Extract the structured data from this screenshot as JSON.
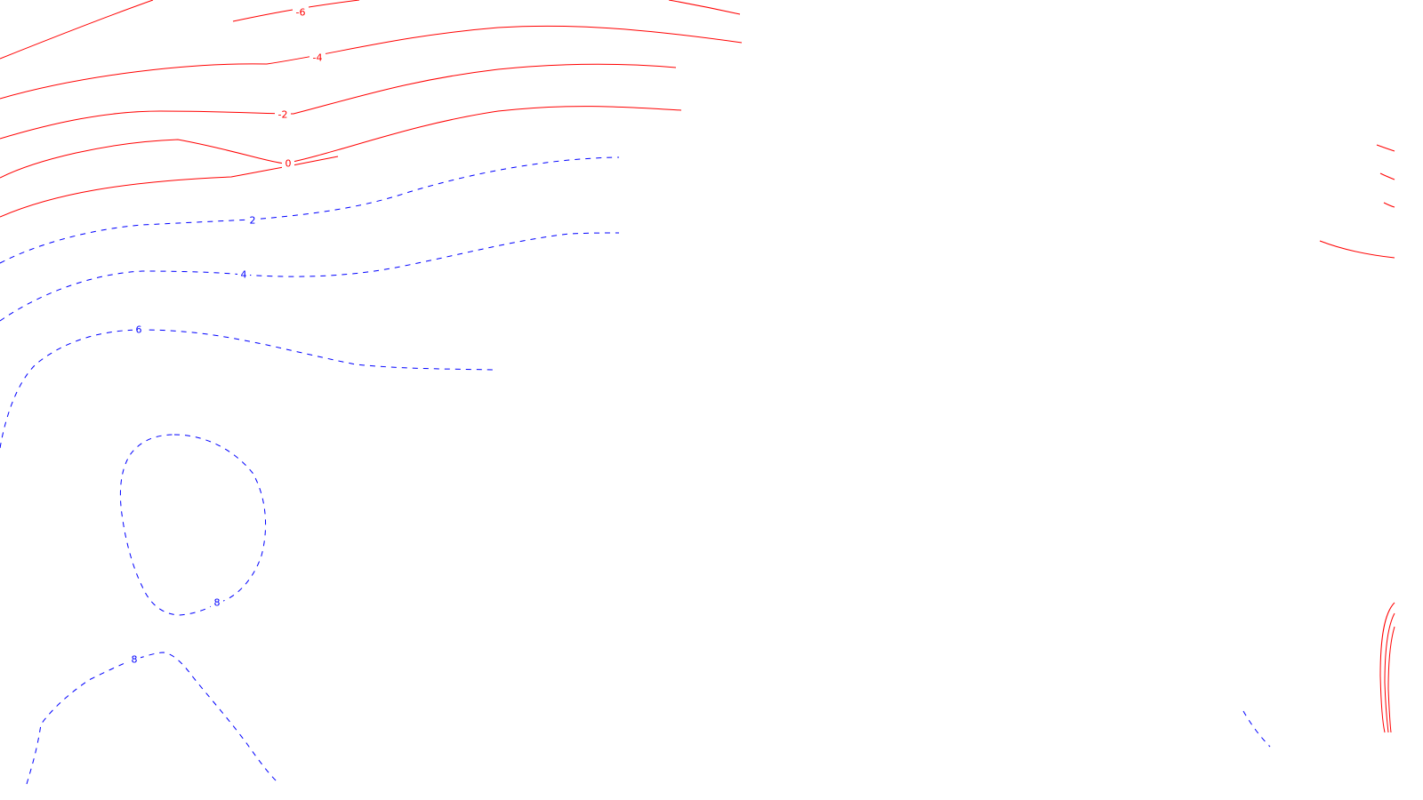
{
  "map": {
    "background_color": "#ffffff",
    "negative_contour_color": "#ff0000",
    "positive_contour_color": "#0000ff",
    "negative_style": "solid",
    "positive_style": "dashed",
    "contour_labels": {
      "neg6": "-6",
      "neg4": "-4",
      "neg2": "-2",
      "zero": "0",
      "pos2": "2",
      "pos4": "4",
      "pos6": "6",
      "pos8_loop": "8",
      "pos8_lower": "8"
    }
  }
}
